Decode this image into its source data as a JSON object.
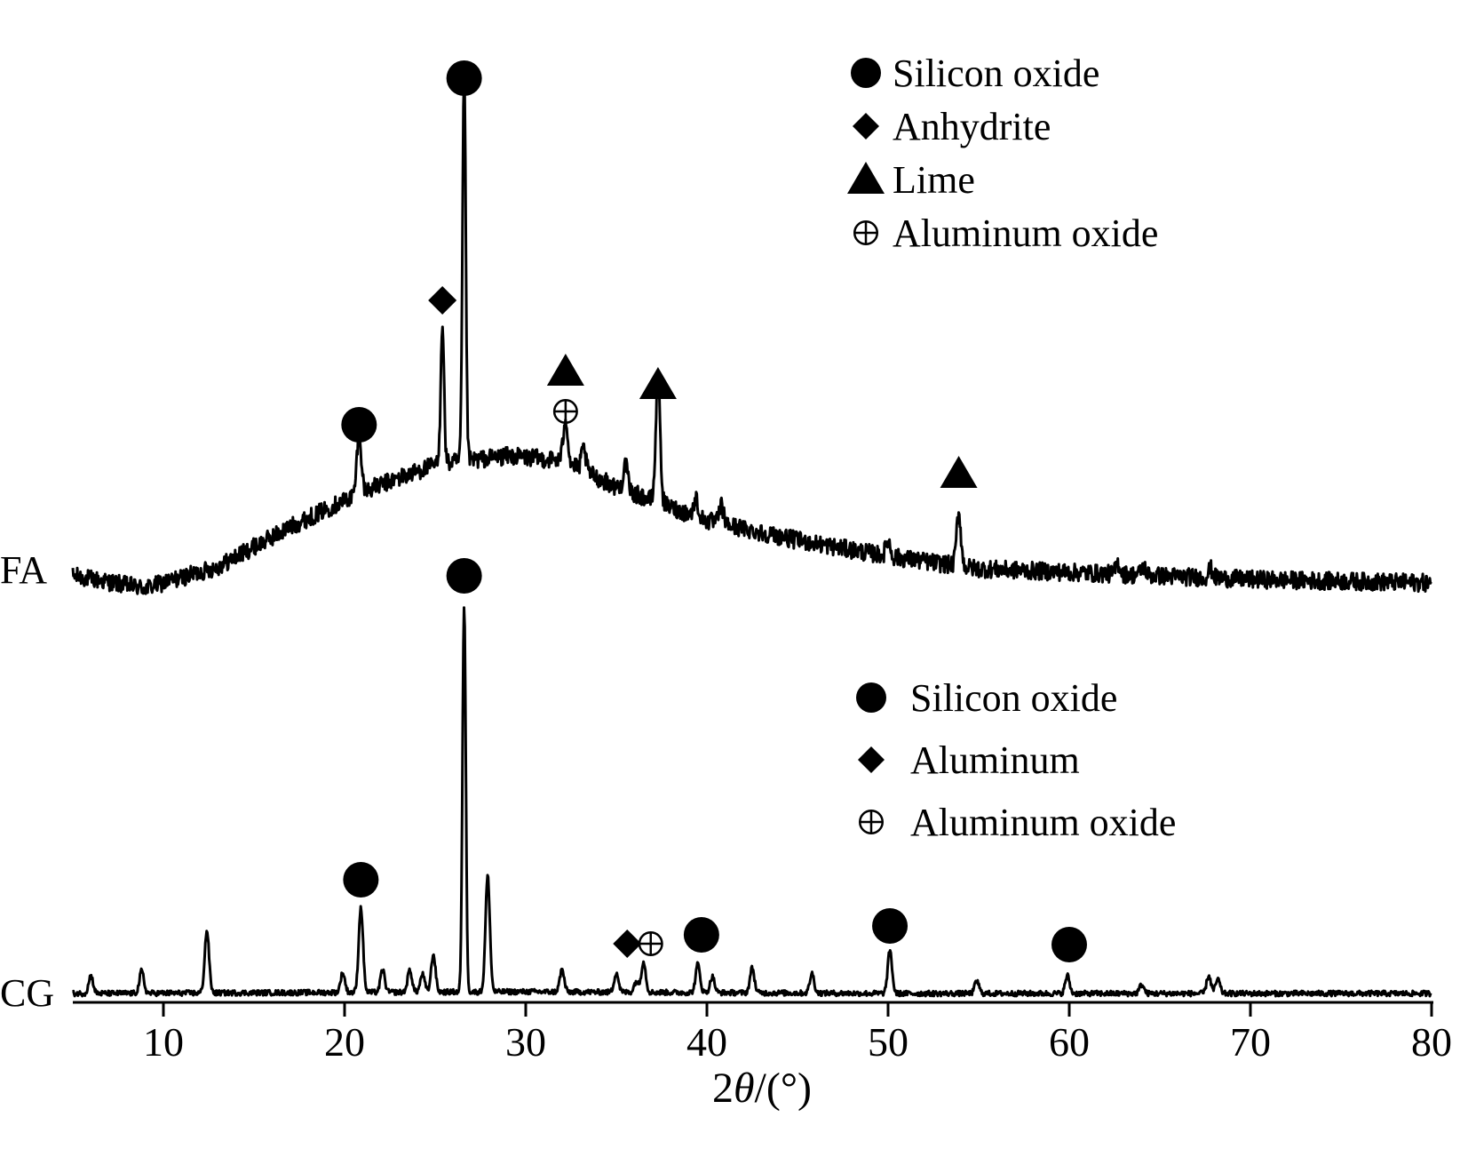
{
  "chart_data": {
    "type": "line",
    "title": "",
    "xlabel_prefix": "2",
    "xlabel_symbol": "θ",
    "xlabel_suffix": "/(°)",
    "ylabel": "",
    "xlim": [
      5,
      80
    ],
    "xticks": [
      10,
      20,
      30,
      40,
      50,
      60,
      70,
      80
    ],
    "grid": false,
    "colors": {
      "line": "#000000",
      "marker": "#000000"
    },
    "series": [
      {
        "name": "FA",
        "baseline_profile": [
          [
            5,
            0
          ],
          [
            9,
            -14
          ],
          [
            13,
            10
          ],
          [
            17,
            55
          ],
          [
            21,
            95
          ],
          [
            25,
            125
          ],
          [
            29,
            135
          ],
          [
            32,
            130
          ],
          [
            35,
            100
          ],
          [
            40,
            62
          ],
          [
            45,
            40
          ],
          [
            50,
            22
          ],
          [
            55,
            8
          ],
          [
            60,
            4
          ],
          [
            65,
            0
          ],
          [
            70,
            -4
          ],
          [
            75,
            -6
          ],
          [
            80,
            -8
          ]
        ],
        "peaks": [
          {
            "x": 20.8,
            "intensity": 70,
            "phase": "Silicon oxide"
          },
          {
            "x": 25.4,
            "intensity": 160,
            "phase": "Anhydrite"
          },
          {
            "x": 26.6,
            "intensity": 430,
            "phase": "Silicon oxide"
          },
          {
            "x": 32.2,
            "intensity": 50,
            "phase": "Aluminum oxide"
          },
          {
            "x": 33.2,
            "intensity": 25,
            "phase": ""
          },
          {
            "x": 35.5,
            "intensity": 30,
            "phase": ""
          },
          {
            "x": 37.3,
            "intensity": 140,
            "phase": "Lime"
          },
          {
            "x": 39.4,
            "intensity": 20,
            "phase": ""
          },
          {
            "x": 40.8,
            "intensity": 20,
            "phase": ""
          },
          {
            "x": 50.0,
            "intensity": 18,
            "phase": ""
          },
          {
            "x": 53.9,
            "intensity": 60,
            "phase": "Lime"
          },
          {
            "x": 62.7,
            "intensity": 12,
            "phase": ""
          },
          {
            "x": 64.1,
            "intensity": 10,
            "phase": ""
          },
          {
            "x": 67.8,
            "intensity": 10,
            "phase": ""
          }
        ],
        "markers": [
          {
            "x": 26.6,
            "intensity": 560,
            "symbol": "circle"
          },
          {
            "x": 25.4,
            "intensity": 310,
            "symbol": "diamond"
          },
          {
            "x": 20.8,
            "intensity": 170,
            "symbol": "circle"
          },
          {
            "x": 32.2,
            "intensity": 230,
            "symbol": "triangle"
          },
          {
            "x": 32.2,
            "intensity": 185,
            "symbol": "circle-plus"
          },
          {
            "x": 37.3,
            "intensity": 215,
            "symbol": "triangle"
          },
          {
            "x": 53.9,
            "intensity": 115,
            "symbol": "triangle"
          }
        ]
      },
      {
        "name": "CG",
        "baseline_profile": [
          [
            5,
            0
          ],
          [
            30,
            2
          ],
          [
            50,
            0
          ],
          [
            80,
            0
          ]
        ],
        "peaks": [
          {
            "x": 6.0,
            "intensity": 20,
            "phase": ""
          },
          {
            "x": 8.8,
            "intensity": 25,
            "phase": ""
          },
          {
            "x": 12.4,
            "intensity": 70,
            "phase": ""
          },
          {
            "x": 19.9,
            "intensity": 22,
            "phase": ""
          },
          {
            "x": 20.9,
            "intensity": 95,
            "phase": "Silicon oxide"
          },
          {
            "x": 22.1,
            "intensity": 25,
            "phase": ""
          },
          {
            "x": 23.6,
            "intensity": 25,
            "phase": ""
          },
          {
            "x": 24.3,
            "intensity": 20,
            "phase": ""
          },
          {
            "x": 24.9,
            "intensity": 42,
            "phase": ""
          },
          {
            "x": 26.6,
            "intensity": 435,
            "phase": "Silicon oxide"
          },
          {
            "x": 27.9,
            "intensity": 130,
            "phase": ""
          },
          {
            "x": 32.0,
            "intensity": 25,
            "phase": ""
          },
          {
            "x": 35.0,
            "intensity": 22,
            "phase": ""
          },
          {
            "x": 36.1,
            "intensity": 12,
            "phase": "Aluminum"
          },
          {
            "x": 36.5,
            "intensity": 35,
            "phase": "Aluminum oxide"
          },
          {
            "x": 39.5,
            "intensity": 32,
            "phase": "Silicon oxide"
          },
          {
            "x": 40.3,
            "intensity": 18,
            "phase": ""
          },
          {
            "x": 42.5,
            "intensity": 28,
            "phase": ""
          },
          {
            "x": 45.8,
            "intensity": 22,
            "phase": ""
          },
          {
            "x": 50.1,
            "intensity": 48,
            "phase": "Silicon oxide"
          },
          {
            "x": 54.9,
            "intensity": 14,
            "phase": ""
          },
          {
            "x": 59.9,
            "intensity": 20,
            "phase": "Silicon oxide"
          },
          {
            "x": 64.0,
            "intensity": 10,
            "phase": ""
          },
          {
            "x": 67.7,
            "intensity": 20,
            "phase": ""
          },
          {
            "x": 68.2,
            "intensity": 16,
            "phase": ""
          }
        ],
        "markers": [
          {
            "x": 26.6,
            "intensity": 470,
            "symbol": "circle"
          },
          {
            "x": 20.9,
            "intensity": 128,
            "symbol": "circle"
          },
          {
            "x": 35.6,
            "intensity": 56,
            "symbol": "diamond"
          },
          {
            "x": 36.9,
            "intensity": 56,
            "symbol": "circle-plus"
          },
          {
            "x": 39.7,
            "intensity": 66,
            "symbol": "circle"
          },
          {
            "x": 50.1,
            "intensity": 76,
            "symbol": "circle"
          },
          {
            "x": 60.0,
            "intensity": 55,
            "symbol": "circle"
          }
        ]
      }
    ],
    "legends": [
      {
        "for": "FA",
        "placement": "top-right",
        "entries": [
          {
            "symbol": "circle",
            "label": "Silicon oxide"
          },
          {
            "symbol": "diamond",
            "label": "Anhydrite"
          },
          {
            "symbol": "triangle",
            "label": "Lime"
          },
          {
            "symbol": "circle-plus",
            "label": "Aluminum oxide"
          }
        ]
      },
      {
        "for": "CG",
        "placement": "middle-right",
        "entries": [
          {
            "symbol": "circle",
            "label": "Silicon oxide"
          },
          {
            "symbol": "diamond",
            "label": "Aluminum"
          },
          {
            "symbol": "circle-plus",
            "label": "Aluminum oxide"
          }
        ]
      }
    ]
  }
}
